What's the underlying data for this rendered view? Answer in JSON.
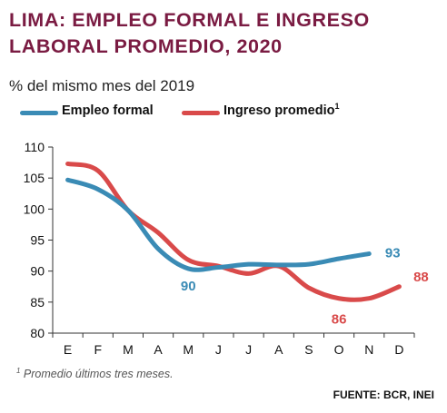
{
  "header": {
    "title_line1": "LIMA: EMPLEO FORMAL E INGRESO",
    "title_line2": "LABORAL  PROMEDIO, 2020",
    "subtitle": "% del mismo mes del 2019"
  },
  "legend": {
    "series1": "Empleo formal",
    "series2": "Ingreso promedio",
    "series2_marker": "1"
  },
  "footer": {
    "footnote_marker": "1",
    "footnote": " Promedio últimos tres meses.",
    "source": "FUENTE: BCR, INEI"
  },
  "colors": {
    "empleo": "#3a8bb5",
    "ingreso": "#d94a4a",
    "title": "#7a1b42"
  },
  "chart_data": {
    "type": "line",
    "title": "LIMA: EMPLEO FORMAL E INGRESO LABORAL PROMEDIO, 2020",
    "subtitle": "% del mismo mes del 2019",
    "categories": [
      "E",
      "F",
      "M",
      "A",
      "M",
      "J",
      "J",
      "A",
      "S",
      "O",
      "N",
      "D"
    ],
    "ylim": [
      80,
      110
    ],
    "yticks": [
      80,
      85,
      90,
      95,
      100,
      105,
      110
    ],
    "grid": false,
    "legend_position": "top-left",
    "series": [
      {
        "name": "Empleo formal",
        "color": "#3a8bb5",
        "x": [
          0,
          1,
          2,
          3,
          4,
          5,
          6,
          7,
          8,
          9,
          10
        ],
        "values": [
          104.7,
          103.2,
          99.8,
          93.6,
          90.4,
          90.6,
          91.1,
          91.0,
          91.1,
          92.0,
          92.8
        ]
      },
      {
        "name": "Ingreso promedio",
        "color": "#d94a4a",
        "x": [
          0,
          1,
          2,
          3,
          4,
          5,
          6,
          7,
          8,
          9,
          10,
          11
        ],
        "values": [
          107.3,
          106.2,
          99.8,
          96.2,
          91.8,
          90.8,
          89.6,
          90.8,
          87.3,
          85.6,
          85.6,
          87.5
        ]
      }
    ],
    "annotations": [
      {
        "text": "90",
        "series": "Empleo formal",
        "x": 4,
        "color": "#3a8bb5"
      },
      {
        "text": "93",
        "series": "Empleo formal",
        "x": 10,
        "color": "#3a8bb5"
      },
      {
        "text": "86",
        "series": "Ingreso promedio",
        "x": 9,
        "color": "#d94a4a"
      },
      {
        "text": "88",
        "series": "Ingreso promedio",
        "x": 11,
        "color": "#d94a4a"
      }
    ]
  }
}
